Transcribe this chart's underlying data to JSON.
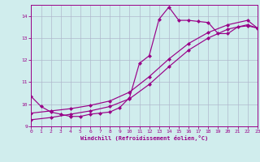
{
  "xlabel": "Windchill (Refroidissement éolien,°C)",
  "bg_color": "#d0eded",
  "line_color": "#990088",
  "grid_color": "#b0b8cc",
  "xlim": [
    0,
    23
  ],
  "ylim": [
    9,
    14.5
  ],
  "yticks": [
    9,
    10,
    11,
    12,
    13,
    14
  ],
  "xticks": [
    0,
    1,
    2,
    3,
    4,
    5,
    6,
    7,
    8,
    9,
    10,
    11,
    12,
    13,
    14,
    15,
    16,
    17,
    18,
    19,
    20,
    21,
    22,
    23
  ],
  "line1_x": [
    0,
    1,
    2,
    3,
    4,
    5,
    6,
    7,
    8,
    9,
    10,
    11,
    12,
    13,
    14,
    15,
    16,
    17,
    18,
    19,
    20,
    21,
    22,
    23
  ],
  "line1_y": [
    10.35,
    9.9,
    9.65,
    9.55,
    9.45,
    9.45,
    9.55,
    9.6,
    9.65,
    9.85,
    10.3,
    11.85,
    12.2,
    13.85,
    14.4,
    13.8,
    13.8,
    13.75,
    13.7,
    13.2,
    13.2,
    13.5,
    13.55,
    13.45
  ],
  "line2_x": [
    0,
    2,
    4,
    6,
    8,
    10,
    12,
    14,
    16,
    18,
    20,
    22,
    23
  ],
  "line2_y": [
    9.6,
    9.7,
    9.8,
    9.95,
    10.15,
    10.55,
    11.25,
    12.05,
    12.75,
    13.25,
    13.6,
    13.8,
    13.45
  ],
  "line3_x": [
    0,
    2,
    4,
    6,
    8,
    10,
    12,
    14,
    16,
    18,
    20,
    22,
    23
  ],
  "line3_y": [
    9.3,
    9.4,
    9.55,
    9.7,
    9.9,
    10.25,
    10.9,
    11.7,
    12.45,
    13.0,
    13.4,
    13.6,
    13.45
  ]
}
